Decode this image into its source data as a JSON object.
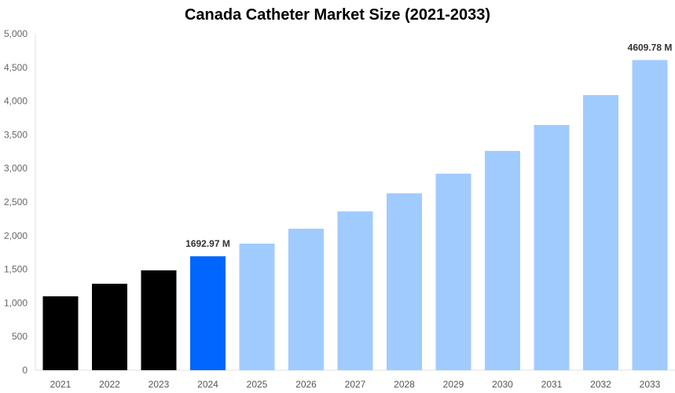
{
  "chart_data": {
    "type": "bar",
    "title": "Canada Catheter Market Size (2021-2033)",
    "xlabel": "",
    "ylabel": "",
    "ylim": [
      0,
      5000
    ],
    "yticks": [
      "0",
      "500",
      "1,000",
      "1,500",
      "2,000",
      "2,500",
      "3,000",
      "3,500",
      "4,000",
      "4,500",
      "5,000"
    ],
    "categories": [
      "2021",
      "2022",
      "2023",
      "2024",
      "2025",
      "2026",
      "2027",
      "2028",
      "2029",
      "2030",
      "2031",
      "2032",
      "2033"
    ],
    "values": [
      1098,
      1285,
      1484,
      1692.97,
      1881,
      2103,
      2360,
      2629,
      2921,
      3259,
      3645,
      4089,
      4609.78
    ],
    "bar_colors": [
      "#000000",
      "#000000",
      "#000000",
      "#0066ff",
      "#a0cbff",
      "#a0cbff",
      "#a0cbff",
      "#a0cbff",
      "#a0cbff",
      "#a0cbff",
      "#a0cbff",
      "#a0cbff",
      "#a0cbff"
    ],
    "data_labels": [
      {
        "index": 3,
        "text": "1692.97 M"
      },
      {
        "index": 12,
        "text": "4609.78 M"
      }
    ],
    "grid": false,
    "legend": "none"
  }
}
